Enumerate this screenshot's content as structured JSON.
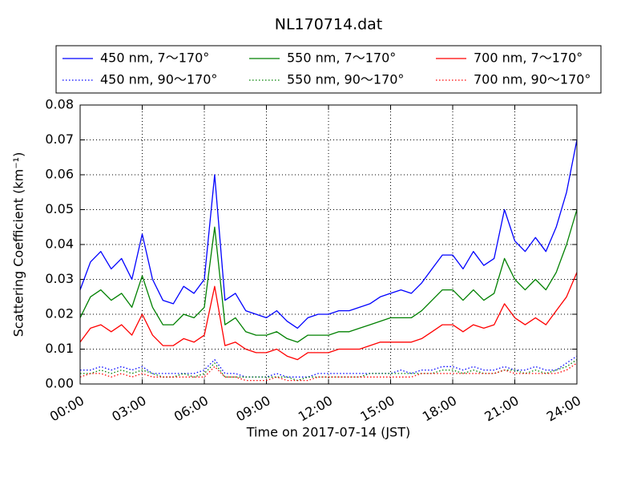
{
  "chart_data": {
    "type": "line",
    "title": "NL170714.dat",
    "xlabel": "Time on 2017-07-14 (JST)",
    "ylabel": "Scattering Coefficient (km⁻¹)",
    "x": [
      0,
      0.5,
      1,
      1.5,
      2,
      2.5,
      3,
      3.5,
      4,
      4.5,
      5,
      5.5,
      6,
      6.5,
      7,
      7.5,
      8,
      8.5,
      9,
      9.5,
      10,
      10.5,
      11,
      11.5,
      12,
      12.5,
      13,
      13.5,
      14,
      14.5,
      15,
      15.5,
      16,
      16.5,
      17,
      17.5,
      18,
      18.5,
      19,
      19.5,
      20,
      20.5,
      21,
      21.5,
      22,
      22.5,
      23,
      23.5,
      24
    ],
    "xlim": [
      0,
      24
    ],
    "xticks": [
      {
        "value": 0,
        "label": "00:00"
      },
      {
        "value": 3,
        "label": "03:00"
      },
      {
        "value": 6,
        "label": "06:00"
      },
      {
        "value": 9,
        "label": "09:00"
      },
      {
        "value": 12,
        "label": "12:00"
      },
      {
        "value": 15,
        "label": "15:00"
      },
      {
        "value": 18,
        "label": "18:00"
      },
      {
        "value": 21,
        "label": "21:00"
      },
      {
        "value": 24,
        "label": "24:00"
      }
    ],
    "ylim": [
      0,
      0.08
    ],
    "yticks": [
      {
        "value": 0,
        "label": "0.00"
      },
      {
        "value": 0.01,
        "label": "0.01"
      },
      {
        "value": 0.02,
        "label": "0.02"
      },
      {
        "value": 0.03,
        "label": "0.03"
      },
      {
        "value": 0.04,
        "label": "0.04"
      },
      {
        "value": 0.05,
        "label": "0.05"
      },
      {
        "value": 0.06,
        "label": "0.06"
      },
      {
        "value": 0.07,
        "label": "0.07"
      },
      {
        "value": 0.08,
        "label": "0.08"
      }
    ],
    "grid": true,
    "legend": "top",
    "series": [
      {
        "name": "450 nm, 7～170°",
        "color": "#0000ff",
        "dash": "solid",
        "values": [
          0.027,
          0.035,
          0.038,
          0.033,
          0.036,
          0.03,
          0.043,
          0.03,
          0.024,
          0.023,
          0.028,
          0.026,
          0.03,
          0.06,
          0.024,
          0.026,
          0.021,
          0.02,
          0.019,
          0.021,
          0.018,
          0.016,
          0.019,
          0.02,
          0.02,
          0.021,
          0.021,
          0.022,
          0.023,
          0.025,
          0.026,
          0.027,
          0.026,
          0.029,
          0.033,
          0.037,
          0.037,
          0.033,
          0.038,
          0.034,
          0.036,
          0.05,
          0.041,
          0.038,
          0.042,
          0.038,
          0.045,
          0.055,
          0.07
        ]
      },
      {
        "name": "450 nm, 90～170°",
        "color": "#0000ff",
        "dash": "dotted",
        "values": [
          0.004,
          0.004,
          0.005,
          0.004,
          0.005,
          0.004,
          0.005,
          0.003,
          0.003,
          0.003,
          0.003,
          0.003,
          0.004,
          0.007,
          0.003,
          0.003,
          0.002,
          0.002,
          0.002,
          0.003,
          0.002,
          0.002,
          0.002,
          0.003,
          0.003,
          0.003,
          0.003,
          0.003,
          0.003,
          0.003,
          0.003,
          0.004,
          0.003,
          0.004,
          0.004,
          0.005,
          0.005,
          0.004,
          0.005,
          0.004,
          0.004,
          0.005,
          0.004,
          0.004,
          0.005,
          0.004,
          0.004,
          0.006,
          0.008
        ]
      },
      {
        "name": "550 nm, 7～170°",
        "color": "#008000",
        "dash": "solid",
        "values": [
          0.019,
          0.025,
          0.027,
          0.024,
          0.026,
          0.022,
          0.031,
          0.022,
          0.017,
          0.017,
          0.02,
          0.019,
          0.022,
          0.045,
          0.017,
          0.019,
          0.015,
          0.014,
          0.014,
          0.015,
          0.013,
          0.012,
          0.014,
          0.014,
          0.014,
          0.015,
          0.015,
          0.016,
          0.017,
          0.018,
          0.019,
          0.019,
          0.019,
          0.021,
          0.024,
          0.027,
          0.027,
          0.024,
          0.027,
          0.024,
          0.026,
          0.036,
          0.03,
          0.027,
          0.03,
          0.027,
          0.032,
          0.04,
          0.05
        ]
      },
      {
        "name": "550 nm, 90～170°",
        "color": "#008000",
        "dash": "dotted",
        "values": [
          0.003,
          0.003,
          0.004,
          0.003,
          0.004,
          0.003,
          0.004,
          0.003,
          0.002,
          0.002,
          0.003,
          0.002,
          0.003,
          0.006,
          0.002,
          0.002,
          0.002,
          0.002,
          0.002,
          0.002,
          0.002,
          0.001,
          0.002,
          0.002,
          0.002,
          0.002,
          0.002,
          0.002,
          0.003,
          0.003,
          0.003,
          0.003,
          0.003,
          0.003,
          0.003,
          0.004,
          0.004,
          0.003,
          0.004,
          0.003,
          0.003,
          0.004,
          0.004,
          0.003,
          0.004,
          0.003,
          0.004,
          0.005,
          0.007
        ]
      },
      {
        "name": "700 nm, 7～170°",
        "color": "#ff0000",
        "dash": "solid",
        "values": [
          0.012,
          0.016,
          0.017,
          0.015,
          0.017,
          0.014,
          0.02,
          0.014,
          0.011,
          0.011,
          0.013,
          0.012,
          0.014,
          0.028,
          0.011,
          0.012,
          0.01,
          0.009,
          0.009,
          0.01,
          0.008,
          0.007,
          0.009,
          0.009,
          0.009,
          0.01,
          0.01,
          0.01,
          0.011,
          0.012,
          0.012,
          0.012,
          0.012,
          0.013,
          0.015,
          0.017,
          0.017,
          0.015,
          0.017,
          0.016,
          0.017,
          0.023,
          0.019,
          0.017,
          0.019,
          0.017,
          0.021,
          0.025,
          0.032
        ]
      },
      {
        "name": "700 nm, 90～170°",
        "color": "#ff0000",
        "dash": "dotted",
        "values": [
          0.002,
          0.003,
          0.003,
          0.002,
          0.003,
          0.002,
          0.003,
          0.002,
          0.002,
          0.002,
          0.002,
          0.002,
          0.002,
          0.005,
          0.002,
          0.002,
          0.001,
          0.001,
          0.001,
          0.002,
          0.001,
          0.001,
          0.001,
          0.002,
          0.002,
          0.002,
          0.002,
          0.002,
          0.002,
          0.002,
          0.002,
          0.002,
          0.002,
          0.003,
          0.003,
          0.003,
          0.003,
          0.003,
          0.003,
          0.003,
          0.003,
          0.004,
          0.003,
          0.003,
          0.003,
          0.003,
          0.003,
          0.004,
          0.006
        ]
      }
    ]
  }
}
